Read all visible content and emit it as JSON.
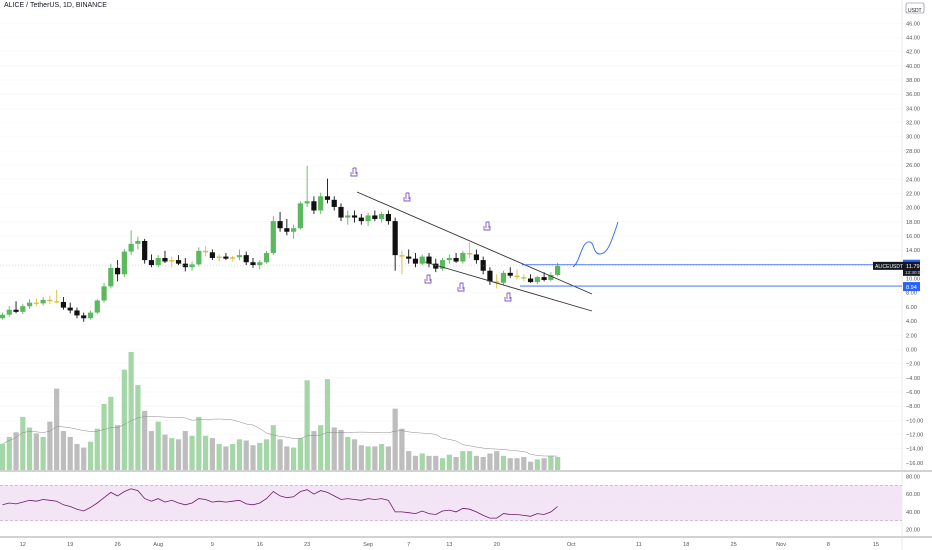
{
  "symbol_title": "ALICE / TetherUS, 1D, BINANCE",
  "currency_badge": {
    "line1": "48.00",
    "line2": "USDT"
  },
  "colors": {
    "up": "#5cb85c",
    "down": "#111111",
    "doji": "#d4c03a",
    "vol_up": "#a5d6a7",
    "vol_down": "#bdbdbd",
    "vol_ma": "#888888",
    "blue_line": "#2962ff",
    "channel": "#333333",
    "rsi_line": "#6a1b6a",
    "rsi_band": "#f3e5f5",
    "rsi_band_border": "#bfa3c7",
    "hand": "#7e57c2",
    "projection": "#2962ff",
    "grid": "#eeeeee",
    "axis_text": "#555555"
  },
  "price_labels": {
    "upper": "11.95",
    "lower": "8.94",
    "symbol": "ALICEUSDT",
    "current": "11.79",
    "countdown": "13:30:07"
  },
  "chart_data": {
    "type": "candlestick",
    "title": "ALICE / TetherUS, 1D, BINANCE",
    "price_axis_ticks": [
      48,
      46,
      44,
      42,
      40,
      38,
      36,
      34,
      32,
      30,
      28,
      26,
      24,
      22,
      20,
      18,
      16,
      14,
      12,
      10,
      8,
      6,
      4,
      2,
      0,
      -2,
      -4,
      -6,
      -8,
      -10,
      -12,
      -14,
      -16
    ],
    "price_axis_labels": [
      "48.00",
      "46.00",
      "44.00",
      "42.00",
      "40.00",
      "38.00",
      "36.00",
      "34.00",
      "32.00",
      "30.00",
      "28.00",
      "26.00",
      "24.00",
      "22.00",
      "20.00",
      "18.00",
      "16.00",
      "14.00",
      "12.00",
      "10.00",
      "8.00",
      "6.00",
      "4.00",
      "2.00",
      "0.00",
      "−2.00",
      "−4.00",
      "−6.00",
      "−8.00",
      "−10.00",
      "−12.00",
      "−14.00",
      "−16.00"
    ],
    "price_range": [
      -17,
      49
    ],
    "time_axis_labels": [
      {
        "label": "12",
        "day": 3
      },
      {
        "label": "19",
        "day": 10
      },
      {
        "label": "26",
        "day": 17
      },
      {
        "label": "Aug",
        "day": 23
      },
      {
        "label": "9",
        "day": 31
      },
      {
        "label": "16",
        "day": 38
      },
      {
        "label": "23",
        "day": 45
      },
      {
        "label": "Sep",
        "day": 54
      },
      {
        "label": "7",
        "day": 60
      },
      {
        "label": "13",
        "day": 66
      },
      {
        "label": "20",
        "day": 73
      },
      {
        "label": "Oct",
        "day": 84
      },
      {
        "label": "11",
        "day": 94
      },
      {
        "label": "18",
        "day": 101
      },
      {
        "label": "25",
        "day": 108
      },
      {
        "label": "Nov",
        "day": 115
      },
      {
        "label": "8",
        "day": 122
      },
      {
        "label": "15",
        "day": 129
      }
    ],
    "candles": [
      {
        "o": 4.4,
        "h": 5.2,
        "l": 4.2,
        "c": 4.9
      },
      {
        "o": 4.9,
        "h": 6.1,
        "l": 4.6,
        "c": 5.6
      },
      {
        "o": 5.6,
        "h": 6.8,
        "l": 5.1,
        "c": 5.3
      },
      {
        "o": 5.3,
        "h": 6.4,
        "l": 5.0,
        "c": 6.1
      },
      {
        "o": 6.1,
        "h": 7.1,
        "l": 5.7,
        "c": 6.6
      },
      {
        "o": 6.6,
        "h": 7.2,
        "l": 6.1,
        "c": 6.5
      },
      {
        "o": 6.5,
        "h": 7.4,
        "l": 6.2,
        "c": 7.0
      },
      {
        "o": 7.0,
        "h": 7.6,
        "l": 6.4,
        "c": 6.8
      },
      {
        "o": 6.8,
        "h": 8.4,
        "l": 6.5,
        "c": 6.7
      },
      {
        "o": 6.7,
        "h": 7.4,
        "l": 5.6,
        "c": 5.9
      },
      {
        "o": 5.9,
        "h": 6.6,
        "l": 5.1,
        "c": 5.5
      },
      {
        "o": 5.5,
        "h": 5.9,
        "l": 4.4,
        "c": 4.8
      },
      {
        "o": 4.8,
        "h": 5.2,
        "l": 3.9,
        "c": 4.4
      },
      {
        "o": 4.4,
        "h": 5.5,
        "l": 4.2,
        "c": 5.2
      },
      {
        "o": 5.2,
        "h": 7.1,
        "l": 5.0,
        "c": 6.9
      },
      {
        "o": 6.9,
        "h": 9.4,
        "l": 6.6,
        "c": 8.9
      },
      {
        "o": 8.9,
        "h": 12.1,
        "l": 8.6,
        "c": 11.5
      },
      {
        "o": 11.5,
        "h": 12.6,
        "l": 9.6,
        "c": 10.6
      },
      {
        "o": 10.6,
        "h": 14.2,
        "l": 10.2,
        "c": 13.8
      },
      {
        "o": 13.8,
        "h": 16.8,
        "l": 13.3,
        "c": 14.9
      },
      {
        "o": 14.9,
        "h": 15.9,
        "l": 14.1,
        "c": 15.3
      },
      {
        "o": 15.3,
        "h": 15.6,
        "l": 12.1,
        "c": 12.6
      },
      {
        "o": 12.6,
        "h": 13.4,
        "l": 11.6,
        "c": 11.9
      },
      {
        "o": 11.9,
        "h": 13.3,
        "l": 11.6,
        "c": 12.9
      },
      {
        "o": 12.9,
        "h": 13.9,
        "l": 12.2,
        "c": 12.4
      },
      {
        "o": 12.4,
        "h": 13.1,
        "l": 11.6,
        "c": 12.6
      },
      {
        "o": 12.6,
        "h": 13.3,
        "l": 11.9,
        "c": 12.1
      },
      {
        "o": 12.1,
        "h": 12.9,
        "l": 11.0,
        "c": 11.6
      },
      {
        "o": 11.6,
        "h": 12.4,
        "l": 11.1,
        "c": 12.0
      },
      {
        "o": 12.0,
        "h": 14.4,
        "l": 11.7,
        "c": 13.9
      },
      {
        "o": 13.9,
        "h": 14.6,
        "l": 13.1,
        "c": 13.7
      },
      {
        "o": 13.7,
        "h": 14.1,
        "l": 12.6,
        "c": 12.9
      },
      {
        "o": 12.9,
        "h": 13.4,
        "l": 12.4,
        "c": 13.1
      },
      {
        "o": 13.1,
        "h": 13.6,
        "l": 12.6,
        "c": 12.8
      },
      {
        "o": 12.8,
        "h": 13.2,
        "l": 12.4,
        "c": 13.0
      },
      {
        "o": 13.0,
        "h": 14.1,
        "l": 12.6,
        "c": 13.3
      },
      {
        "o": 13.3,
        "h": 13.8,
        "l": 11.9,
        "c": 12.3
      },
      {
        "o": 12.3,
        "h": 12.9,
        "l": 11.5,
        "c": 11.9
      },
      {
        "o": 11.9,
        "h": 12.6,
        "l": 11.3,
        "c": 12.3
      },
      {
        "o": 12.3,
        "h": 13.9,
        "l": 12.1,
        "c": 13.6
      },
      {
        "o": 13.6,
        "h": 18.8,
        "l": 13.3,
        "c": 18.1
      },
      {
        "o": 18.1,
        "h": 19.4,
        "l": 16.6,
        "c": 17.1
      },
      {
        "o": 17.1,
        "h": 18.4,
        "l": 16.1,
        "c": 16.6
      },
      {
        "o": 16.6,
        "h": 17.6,
        "l": 15.6,
        "c": 17.1
      },
      {
        "o": 17.1,
        "h": 20.9,
        "l": 16.9,
        "c": 20.6
      },
      {
        "o": 20.6,
        "h": 25.9,
        "l": 20.1,
        "c": 20.9
      },
      {
        "o": 20.9,
        "h": 21.6,
        "l": 19.1,
        "c": 19.6
      },
      {
        "o": 19.6,
        "h": 22.1,
        "l": 19.1,
        "c": 21.6
      },
      {
        "o": 21.6,
        "h": 24.1,
        "l": 20.6,
        "c": 21.1
      },
      {
        "o": 21.1,
        "h": 21.6,
        "l": 19.6,
        "c": 20.1
      },
      {
        "o": 20.1,
        "h": 20.6,
        "l": 18.1,
        "c": 18.6
      },
      {
        "o": 18.6,
        "h": 19.6,
        "l": 17.6,
        "c": 18.9
      },
      {
        "o": 18.9,
        "h": 19.6,
        "l": 17.9,
        "c": 18.6
      },
      {
        "o": 18.6,
        "h": 19.1,
        "l": 17.6,
        "c": 18.1
      },
      {
        "o": 18.1,
        "h": 19.3,
        "l": 17.4,
        "c": 18.9
      },
      {
        "o": 18.9,
        "h": 19.6,
        "l": 18.1,
        "c": 18.4
      },
      {
        "o": 18.4,
        "h": 19.4,
        "l": 17.9,
        "c": 19.1
      },
      {
        "o": 19.1,
        "h": 19.6,
        "l": 17.6,
        "c": 18.1
      },
      {
        "o": 18.1,
        "h": 18.6,
        "l": 11.1,
        "c": 13.3
      },
      {
        "o": 13.3,
        "h": 13.9,
        "l": 10.6,
        "c": 13.1
      },
      {
        "o": 13.1,
        "h": 14.1,
        "l": 12.1,
        "c": 12.8
      },
      {
        "o": 12.8,
        "h": 13.6,
        "l": 11.6,
        "c": 12.1
      },
      {
        "o": 12.1,
        "h": 13.4,
        "l": 11.9,
        "c": 13.1
      },
      {
        "o": 13.1,
        "h": 13.6,
        "l": 11.6,
        "c": 12.1
      },
      {
        "o": 12.1,
        "h": 12.8,
        "l": 10.9,
        "c": 11.4
      },
      {
        "o": 11.4,
        "h": 12.9,
        "l": 11.1,
        "c": 12.6
      },
      {
        "o": 12.6,
        "h": 13.4,
        "l": 12.1,
        "c": 12.9
      },
      {
        "o": 12.9,
        "h": 13.6,
        "l": 12.2,
        "c": 12.4
      },
      {
        "o": 12.4,
        "h": 13.9,
        "l": 12.1,
        "c": 13.6
      },
      {
        "o": 13.6,
        "h": 15.1,
        "l": 12.9,
        "c": 13.4
      },
      {
        "o": 13.4,
        "h": 14.1,
        "l": 12.1,
        "c": 12.6
      },
      {
        "o": 12.6,
        "h": 13.1,
        "l": 10.6,
        "c": 11.1
      },
      {
        "o": 11.1,
        "h": 11.6,
        "l": 9.1,
        "c": 9.6
      },
      {
        "o": 9.6,
        "h": 10.6,
        "l": 8.6,
        "c": 9.4
      },
      {
        "o": 9.4,
        "h": 11.1,
        "l": 9.1,
        "c": 10.8
      },
      {
        "o": 10.8,
        "h": 11.6,
        "l": 10.1,
        "c": 10.4
      },
      {
        "o": 10.4,
        "h": 11.3,
        "l": 9.9,
        "c": 10.2
      },
      {
        "o": 10.2,
        "h": 10.6,
        "l": 9.6,
        "c": 10.0
      },
      {
        "o": 10.0,
        "h": 10.6,
        "l": 9.4,
        "c": 9.5
      },
      {
        "o": 9.5,
        "h": 10.4,
        "l": 9.2,
        "c": 10.2
      },
      {
        "o": 10.2,
        "h": 10.9,
        "l": 9.6,
        "c": 9.8
      },
      {
        "o": 9.8,
        "h": 10.9,
        "l": 9.6,
        "c": 10.5
      },
      {
        "o": 10.5,
        "h": 12.2,
        "l": 10.3,
        "c": 11.79
      }
    ],
    "volume": [
      {
        "v": 0.22,
        "up": true
      },
      {
        "v": 0.28,
        "up": true
      },
      {
        "v": 0.32,
        "up": false
      },
      {
        "v": 0.45,
        "up": true
      },
      {
        "v": 0.36,
        "up": true
      },
      {
        "v": 0.31,
        "up": false
      },
      {
        "v": 0.28,
        "up": true
      },
      {
        "v": 0.41,
        "up": false
      },
      {
        "v": 0.69,
        "up": false
      },
      {
        "v": 0.33,
        "up": false
      },
      {
        "v": 0.28,
        "up": false
      },
      {
        "v": 0.22,
        "up": false
      },
      {
        "v": 0.19,
        "up": false
      },
      {
        "v": 0.24,
        "up": true
      },
      {
        "v": 0.35,
        "up": true
      },
      {
        "v": 0.56,
        "up": true
      },
      {
        "v": 0.62,
        "up": true
      },
      {
        "v": 0.38,
        "up": false
      },
      {
        "v": 0.85,
        "up": true
      },
      {
        "v": 1.0,
        "up": true
      },
      {
        "v": 0.72,
        "up": true
      },
      {
        "v": 0.5,
        "up": false
      },
      {
        "v": 0.33,
        "up": false
      },
      {
        "v": 0.41,
        "up": true
      },
      {
        "v": 0.3,
        "up": false
      },
      {
        "v": 0.27,
        "up": true
      },
      {
        "v": 0.26,
        "up": false
      },
      {
        "v": 0.33,
        "up": false
      },
      {
        "v": 0.29,
        "up": true
      },
      {
        "v": 0.45,
        "up": true
      },
      {
        "v": 0.29,
        "up": true
      },
      {
        "v": 0.27,
        "up": false
      },
      {
        "v": 0.22,
        "up": true
      },
      {
        "v": 0.2,
        "up": false
      },
      {
        "v": 0.22,
        "up": true
      },
      {
        "v": 0.26,
        "up": true
      },
      {
        "v": 0.25,
        "up": false
      },
      {
        "v": 0.21,
        "up": false
      },
      {
        "v": 0.23,
        "up": true
      },
      {
        "v": 0.26,
        "up": true
      },
      {
        "v": 0.38,
        "up": true
      },
      {
        "v": 0.26,
        "up": false
      },
      {
        "v": 0.2,
        "up": false
      },
      {
        "v": 0.19,
        "up": true
      },
      {
        "v": 0.27,
        "up": true
      },
      {
        "v": 0.76,
        "up": true
      },
      {
        "v": 0.33,
        "up": false
      },
      {
        "v": 0.38,
        "up": true
      },
      {
        "v": 0.77,
        "up": true
      },
      {
        "v": 0.36,
        "up": false
      },
      {
        "v": 0.34,
        "up": false
      },
      {
        "v": 0.28,
        "up": true
      },
      {
        "v": 0.26,
        "up": false
      },
      {
        "v": 0.21,
        "up": false
      },
      {
        "v": 0.2,
        "up": true
      },
      {
        "v": 0.2,
        "up": false
      },
      {
        "v": 0.22,
        "up": true
      },
      {
        "v": 0.2,
        "up": false
      },
      {
        "v": 0.52,
        "up": false
      },
      {
        "v": 0.35,
        "up": false
      },
      {
        "v": 0.16,
        "up": false
      },
      {
        "v": 0.12,
        "up": false
      },
      {
        "v": 0.14,
        "up": true
      },
      {
        "v": 0.12,
        "up": false
      },
      {
        "v": 0.12,
        "up": false
      },
      {
        "v": 0.1,
        "up": true
      },
      {
        "v": 0.13,
        "up": true
      },
      {
        "v": 0.11,
        "up": false
      },
      {
        "v": 0.16,
        "up": true
      },
      {
        "v": 0.16,
        "up": true
      },
      {
        "v": 0.12,
        "up": false
      },
      {
        "v": 0.11,
        "up": false
      },
      {
        "v": 0.14,
        "up": false
      },
      {
        "v": 0.16,
        "up": false
      },
      {
        "v": 0.12,
        "up": true
      },
      {
        "v": 0.1,
        "up": false
      },
      {
        "v": 0.1,
        "up": false
      },
      {
        "v": 0.11,
        "up": false
      },
      {
        "v": 0.07,
        "up": false
      },
      {
        "v": 0.09,
        "up": true
      },
      {
        "v": 0.1,
        "up": false
      },
      {
        "v": 0.12,
        "up": true
      },
      {
        "v": 0.11,
        "up": true
      }
    ],
    "rsi_axis_labels": [
      "80.00",
      "60.00",
      "40.00",
      "20.00"
    ],
    "rsi_axis_ticks": [
      80,
      60,
      40,
      20
    ],
    "rsi_range": [
      15,
      85
    ],
    "rsi_band": [
      30,
      70
    ],
    "rsi": [
      48,
      50,
      49,
      51,
      53,
      52,
      54,
      53,
      52,
      48,
      46,
      43,
      41,
      45,
      50,
      56,
      62,
      58,
      63,
      66,
      64,
      55,
      52,
      55,
      51,
      53,
      50,
      48,
      50,
      55,
      54,
      51,
      52,
      51,
      52,
      53,
      49,
      48,
      50,
      55,
      63,
      58,
      56,
      57,
      63,
      65,
      60,
      64,
      62,
      58,
      54,
      55,
      54,
      53,
      55,
      54,
      55,
      53,
      40,
      40,
      39,
      38,
      41,
      38,
      37,
      41,
      42,
      40,
      44,
      43,
      40,
      36,
      33,
      33,
      38,
      37,
      37,
      36,
      35,
      38,
      37,
      40,
      46
    ],
    "upper_line": 11.95,
    "lower_line": 8.94
  }
}
